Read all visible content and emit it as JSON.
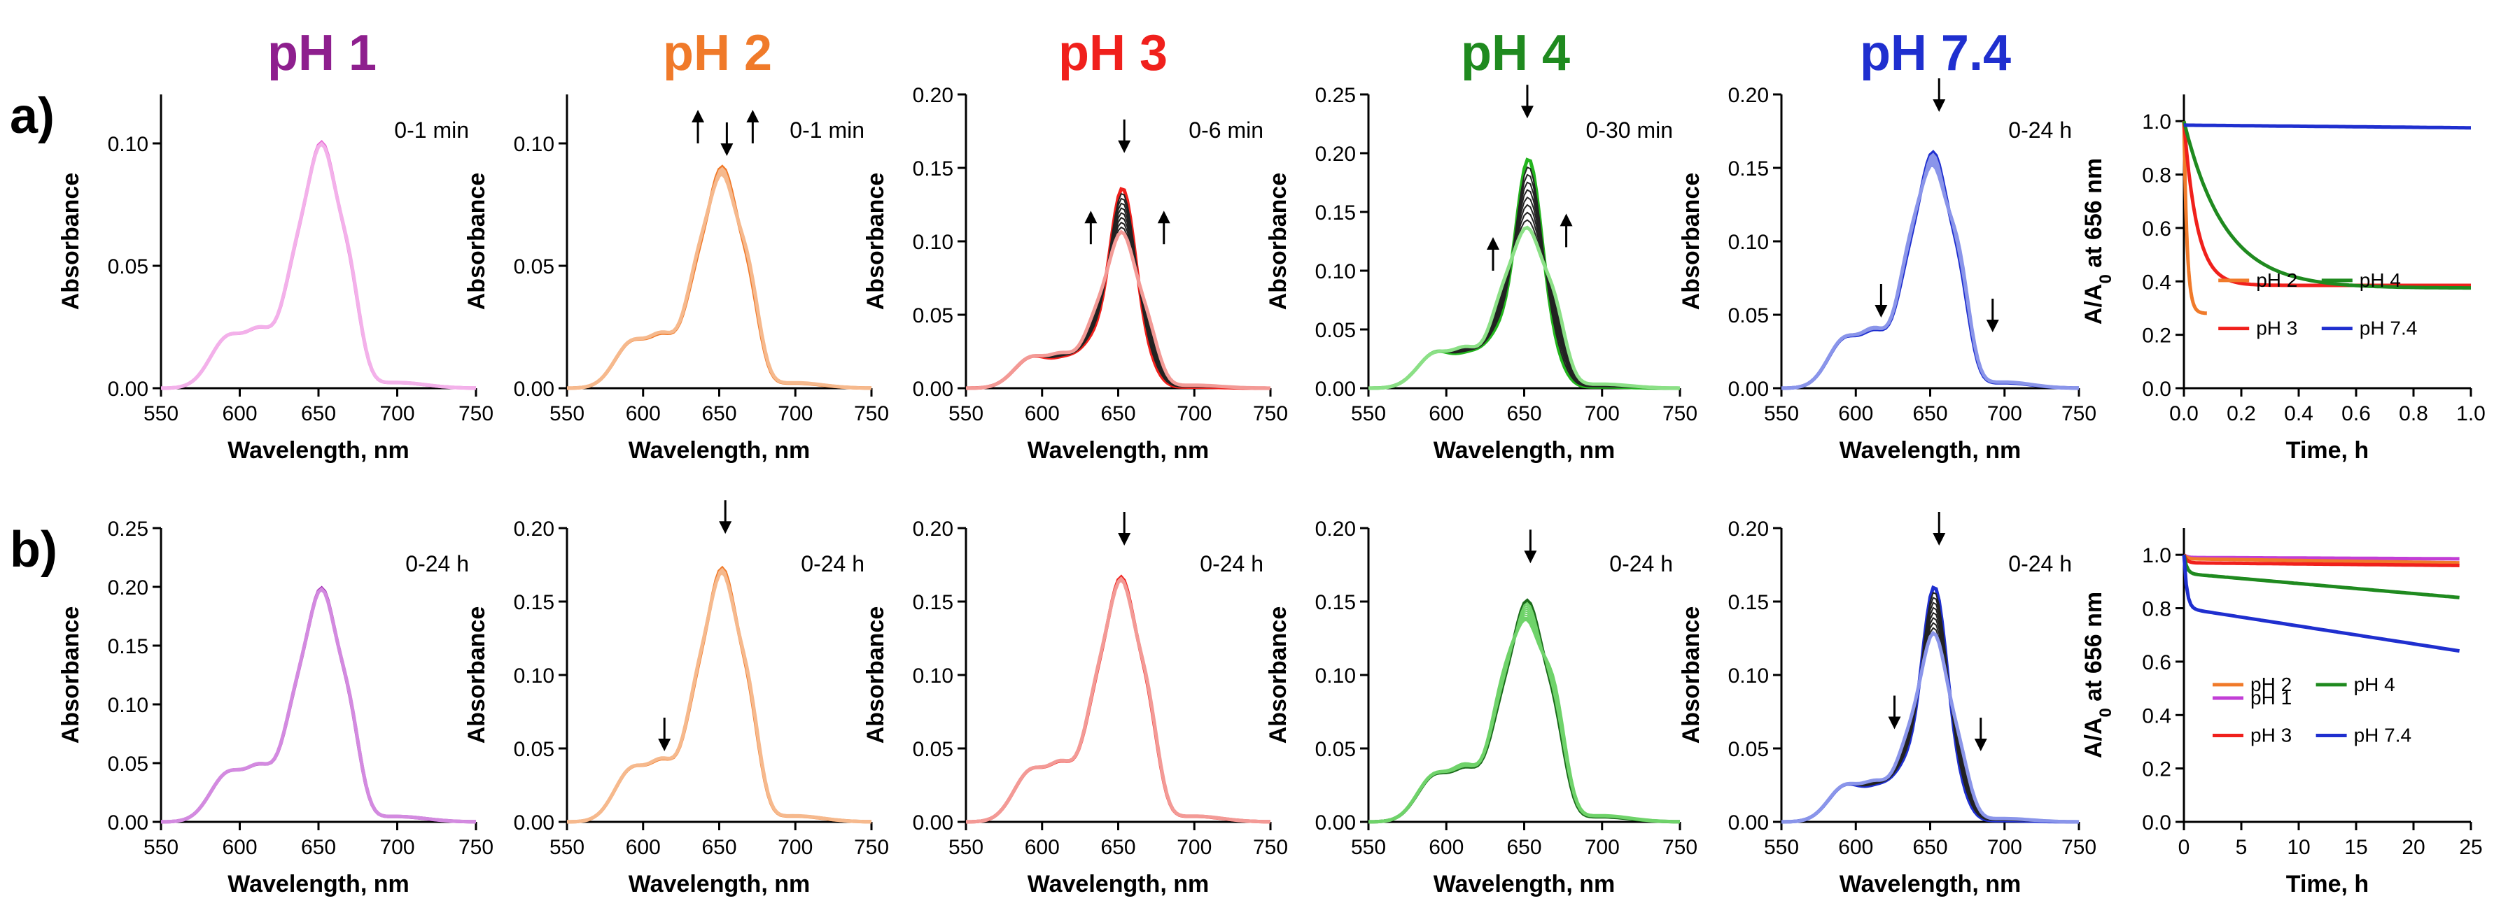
{
  "figure": {
    "row_labels": [
      "a)",
      "b)"
    ],
    "panel_titles": [
      {
        "text": "pH 1",
        "color": "#8e1f8e"
      },
      {
        "text": "pH 2",
        "color": "#f07a2a"
      },
      {
        "text": "pH 3",
        "color": "#f0201c"
      },
      {
        "text": "pH 4",
        "color": "#1f8a1f"
      },
      {
        "text": "pH 7.4",
        "color": "#1f2fcf"
      }
    ]
  },
  "chart_data": [
    {
      "id": "a1",
      "row": 0,
      "col": 0,
      "type": "line",
      "xlabel": "Wavelength, nm",
      "ylabel": "Absorbance",
      "xlim": [
        550,
        750
      ],
      "xticks": [
        550,
        600,
        650,
        700,
        750
      ],
      "xtick_labels": [
        "550",
        "600",
        "650",
        "700",
        "750"
      ],
      "ylim": [
        0,
        0.12
      ],
      "yticks": [
        0,
        0.05,
        0.1
      ],
      "ytick_labels": [
        "0.00",
        "0.05",
        "0.10"
      ],
      "annotation": "0-1 min",
      "peak_h": 0.1,
      "color_main": "#e96ad6",
      "color_band": "#f3b1ea",
      "spread": 0.012,
      "arrows": []
    },
    {
      "id": "a2",
      "row": 0,
      "col": 1,
      "type": "line",
      "xlabel": "Wavelength, nm",
      "ylabel": "Absorbance",
      "xlim": [
        550,
        750
      ],
      "xticks": [
        550,
        600,
        650,
        700,
        750
      ],
      "xtick_labels": [
        "550",
        "600",
        "650",
        "700",
        "750"
      ],
      "ylim": [
        0,
        0.12
      ],
      "yticks": [
        0,
        0.05,
        0.1
      ],
      "ytick_labels": [
        "0.00",
        "0.05",
        "0.10"
      ],
      "annotation": "0-1 min",
      "peak_h": 0.09,
      "color_main": "#f07a2a",
      "color_band": "#f6b98d",
      "spread": 0.06,
      "arrows": [
        {
          "x": 636,
          "y": 0.1,
          "dir": "up"
        },
        {
          "x": 655,
          "y": 0.096,
          "dir": "down"
        },
        {
          "x": 672,
          "y": 0.1,
          "dir": "up"
        }
      ]
    },
    {
      "id": "a3",
      "row": 0,
      "col": 2,
      "type": "line",
      "xlabel": "Wavelength, nm",
      "ylabel": "Absorbance",
      "xlim": [
        550,
        750
      ],
      "xticks": [
        550,
        600,
        650,
        700,
        750
      ],
      "xtick_labels": [
        "550",
        "600",
        "650",
        "700",
        "750"
      ],
      "ylim": [
        0,
        0.2
      ],
      "yticks": [
        0,
        0.05,
        0.1,
        0.15,
        0.2
      ],
      "ytick_labels": [
        "0.00",
        "0.05",
        "0.10",
        "0.15",
        "0.20"
      ],
      "annotation": "0-6 min",
      "peak_h": 0.136,
      "color_main": "#f0201c",
      "color_band": "#f39a96",
      "spread": 0.4,
      "arrows": [
        {
          "x": 632,
          "y": 0.098,
          "dir": "up"
        },
        {
          "x": 654,
          "y": 0.162,
          "dir": "down"
        },
        {
          "x": 680,
          "y": 0.098,
          "dir": "up"
        }
      ]
    },
    {
      "id": "a4",
      "row": 0,
      "col": 3,
      "type": "line",
      "xlabel": "Wavelength, nm",
      "ylabel": "Absorbance",
      "xlim": [
        550,
        750
      ],
      "xticks": [
        550,
        600,
        650,
        700,
        750
      ],
      "xtick_labels": [
        "550",
        "600",
        "650",
        "700",
        "750"
      ],
      "ylim": [
        0,
        0.25
      ],
      "yticks": [
        0,
        0.05,
        0.1,
        0.15,
        0.2,
        0.25
      ],
      "ytick_labels": [
        "0.00",
        "0.05",
        "0.10",
        "0.15",
        "0.20",
        "0.25"
      ],
      "annotation": "0-30 min",
      "peak_h": 0.195,
      "color_main": "#23b51e",
      "color_band": "#8be086",
      "spread": 0.55,
      "arrows": [
        {
          "x": 630,
          "y": 0.1,
          "dir": "up"
        },
        {
          "x": 652,
          "y": 0.232,
          "dir": "down"
        },
        {
          "x": 677,
          "y": 0.12,
          "dir": "up"
        }
      ]
    },
    {
      "id": "a5",
      "row": 0,
      "col": 4,
      "type": "line",
      "xlabel": "Wavelength, nm",
      "ylabel": "Absorbance",
      "xlim": [
        550,
        750
      ],
      "xticks": [
        550,
        600,
        650,
        700,
        750
      ],
      "xtick_labels": [
        "550",
        "600",
        "650",
        "700",
        "750"
      ],
      "ylim": [
        0,
        0.2
      ],
      "yticks": [
        0,
        0.05,
        0.1,
        0.15,
        0.2
      ],
      "ytick_labels": [
        "0.00",
        "0.05",
        "0.10",
        "0.15",
        "0.20"
      ],
      "annotation": "0-24 h",
      "peak_h": 0.16,
      "color_main": "#1f2fcf",
      "color_band": "#8a95ea",
      "spread": 0.1,
      "arrows": [
        {
          "x": 617,
          "y": 0.05,
          "dir": "down"
        },
        {
          "x": 656,
          "y": 0.19,
          "dir": "down"
        },
        {
          "x": 692,
          "y": 0.04,
          "dir": "down"
        }
      ]
    },
    {
      "id": "a6",
      "row": 0,
      "col": 5,
      "type": "line",
      "xlabel": "Time, h",
      "ylabel": "A/A0 at 656 nm",
      "xlim": [
        0,
        1
      ],
      "xticks": [
        0,
        0.2,
        0.4,
        0.6,
        0.8,
        1
      ],
      "xtick_labels": [
        "0.0",
        "0.2",
        "0.4",
        "0.6",
        "0.8",
        "1.0"
      ],
      "ylim": [
        0,
        1.1
      ],
      "yticks": [
        0,
        0.2,
        0.4,
        0.6,
        0.8,
        1
      ],
      "ytick_labels": [
        "0.0",
        "0.2",
        "0.4",
        "0.6",
        "0.8",
        "1.0"
      ],
      "series": [
        {
          "name": "pH 2",
          "color": "#f07a2a",
          "a": 0.28,
          "k": 90,
          "xend": 0.08
        },
        {
          "name": "pH 3",
          "color": "#f0201c",
          "a": 0.385,
          "k": 22,
          "xend": 1
        },
        {
          "name": "pH 4",
          "color": "#1f8a1f",
          "a": 0.375,
          "k": 7,
          "xend": 1
        },
        {
          "name": "pH 7.4",
          "color": "#1f2fcf",
          "a": 0.985,
          "k": 0,
          "end": 0.975,
          "xend": 1
        }
      ],
      "legend": {
        "labels": [
          "pH 2",
          "pH 3",
          "pH 4",
          "pH 7.4"
        ]
      }
    },
    {
      "id": "b1",
      "row": 1,
      "col": 0,
      "type": "line",
      "xlabel": "Wavelength, nm",
      "ylabel": "Absorbance",
      "xlim": [
        550,
        750
      ],
      "xticks": [
        550,
        600,
        650,
        700,
        750
      ],
      "xtick_labels": [
        "550",
        "600",
        "650",
        "700",
        "750"
      ],
      "ylim": [
        0,
        0.25
      ],
      "yticks": [
        0,
        0.05,
        0.1,
        0.15,
        0.2,
        0.25
      ],
      "ytick_labels": [
        "0.00",
        "0.05",
        "0.10",
        "0.15",
        "0.20",
        "0.25"
      ],
      "annotation": "0-24 h",
      "peak_h": 0.198,
      "color_main": "#9e26b0",
      "color_band": "#d38ae0",
      "spread": 0.008,
      "arrows": []
    },
    {
      "id": "b2",
      "row": 1,
      "col": 1,
      "type": "line",
      "xlabel": "Wavelength, nm",
      "ylabel": "Absorbance",
      "xlim": [
        550,
        750
      ],
      "xticks": [
        550,
        600,
        650,
        700,
        750
      ],
      "xtick_labels": [
        "550",
        "600",
        "650",
        "700",
        "750"
      ],
      "ylim": [
        0,
        0.2
      ],
      "yticks": [
        0,
        0.05,
        0.1,
        0.15,
        0.2
      ],
      "ytick_labels": [
        "0.00",
        "0.05",
        "0.10",
        "0.15",
        "0.20"
      ],
      "annotation": "0-24 h",
      "peak_h": 0.172,
      "color_main": "#f07a2a",
      "color_band": "#f6b98d",
      "spread": 0.03,
      "arrows": [
        {
          "x": 614,
          "y": 0.05,
          "dir": "down"
        },
        {
          "x": 654,
          "y": 0.198,
          "dir": "down"
        }
      ]
    },
    {
      "id": "b3",
      "row": 1,
      "col": 2,
      "type": "line",
      "xlabel": "Wavelength, nm",
      "ylabel": "Absorbance",
      "xlim": [
        550,
        750
      ],
      "xticks": [
        550,
        600,
        650,
        700,
        750
      ],
      "xtick_labels": [
        "550",
        "600",
        "650",
        "700",
        "750"
      ],
      "ylim": [
        0,
        0.2
      ],
      "yticks": [
        0,
        0.05,
        0.1,
        0.15,
        0.2
      ],
      "ytick_labels": [
        "0.00",
        "0.05",
        "0.10",
        "0.15",
        "0.20"
      ],
      "annotation": "0-24 h",
      "peak_h": 0.166,
      "color_main": "#f0201c",
      "color_band": "#f39a96",
      "spread": 0.02,
      "arrows": [
        {
          "x": 654,
          "y": 0.19,
          "dir": "down"
        }
      ]
    },
    {
      "id": "b4",
      "row": 1,
      "col": 3,
      "type": "line",
      "xlabel": "Wavelength, nm",
      "ylabel": "Absorbance",
      "xlim": [
        550,
        750
      ],
      "xticks": [
        550,
        600,
        650,
        700,
        750
      ],
      "xtick_labels": [
        "550",
        "600",
        "650",
        "700",
        "750"
      ],
      "ylim": [
        0,
        0.2
      ],
      "yticks": [
        0,
        0.05,
        0.1,
        0.15,
        0.2
      ],
      "ytick_labels": [
        "0.00",
        "0.05",
        "0.10",
        "0.15",
        "0.20"
      ],
      "annotation": "0-24 h",
      "peak_h": 0.15,
      "color_main": "#1a6b1a",
      "color_band": "#6fd36a",
      "spread": 0.16,
      "arrows": [
        {
          "x": 654,
          "y": 0.178,
          "dir": "down"
        }
      ]
    },
    {
      "id": "b5",
      "row": 1,
      "col": 4,
      "type": "line",
      "xlabel": "Wavelength, nm",
      "ylabel": "Absorbance",
      "xlim": [
        550,
        750
      ],
      "xticks": [
        550,
        600,
        650,
        700,
        750
      ],
      "xtick_labels": [
        "550",
        "600",
        "650",
        "700",
        "750"
      ],
      "ylim": [
        0,
        0.2
      ],
      "yticks": [
        0,
        0.05,
        0.1,
        0.15,
        0.2
      ],
      "ytick_labels": [
        "0.00",
        "0.05",
        "0.10",
        "0.15",
        "0.20"
      ],
      "annotation": "0-24 h",
      "peak_h": 0.16,
      "color_main": "#1f2fcf",
      "color_band": "#8a95ea",
      "spread": 0.36,
      "arrows": [
        {
          "x": 626,
          "y": 0.065,
          "dir": "down"
        },
        {
          "x": 656,
          "y": 0.19,
          "dir": "down"
        },
        {
          "x": 684,
          "y": 0.05,
          "dir": "down"
        }
      ]
    },
    {
      "id": "b6",
      "row": 1,
      "col": 5,
      "type": "line",
      "xlabel": "Time, h",
      "ylabel": "A/A0 at 656 nm",
      "xlim": [
        0,
        25
      ],
      "xticks": [
        0,
        5,
        10,
        15,
        20,
        25
      ],
      "xtick_labels": [
        "0",
        "5",
        "10",
        "15",
        "20",
        "25"
      ],
      "ylim": [
        0,
        1.1
      ],
      "yticks": [
        0,
        0.2,
        0.4,
        0.6,
        0.8,
        1
      ],
      "ytick_labels": [
        "0.0",
        "0.2",
        "0.4",
        "0.6",
        "0.8",
        "1.0"
      ],
      "series": [
        {
          "name": "pH 1",
          "color": "#c23ed6",
          "start": 1.0,
          "end": 0.985,
          "drop": 0.01
        },
        {
          "name": "pH 2",
          "color": "#f07a2a",
          "start": 1.0,
          "end": 0.97,
          "drop": 0.015
        },
        {
          "name": "pH 3",
          "color": "#f0201c",
          "start": 1.0,
          "end": 0.96,
          "drop": 0.03
        },
        {
          "name": "pH 4",
          "color": "#1f8a1f",
          "start": 1.0,
          "end": 0.84,
          "drop": 0.07
        },
        {
          "name": "pH 7.4",
          "color": "#1f2fcf",
          "start": 1.0,
          "end": 0.64,
          "drop": 0.2
        }
      ],
      "legend": {
        "labels": [
          "pH 1",
          "pH 2",
          "pH 3",
          "pH 4",
          "pH 7.4"
        ]
      }
    }
  ]
}
